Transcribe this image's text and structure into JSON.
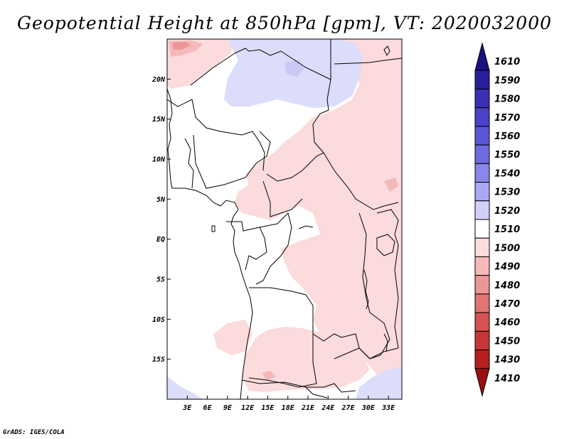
{
  "title": "Geopotential Height at 850hPa [gpm], VT: 2020032000",
  "credit": "GrADS: IGES/COLA",
  "map": {
    "lat_labels": [
      "20N",
      "15N",
      "10N",
      "5N",
      "EQ",
      "5S",
      "10S",
      "15S"
    ],
    "lon_labels": [
      "3E",
      "6E",
      "9E",
      "12E",
      "15E",
      "18E",
      "21E",
      "24E",
      "27E",
      "30E",
      "33E"
    ],
    "lat_values": [
      20,
      15,
      10,
      5,
      0,
      -5,
      -10,
      -15
    ],
    "lon_values": [
      3,
      6,
      9,
      12,
      15,
      18,
      21,
      24,
      27,
      30,
      33
    ],
    "lon_range": [
      0,
      35
    ],
    "lat_range": [
      -20,
      25
    ]
  },
  "colorbar": {
    "levels": [
      "1610",
      "1590",
      "1580",
      "1570",
      "1560",
      "1550",
      "1540",
      "1530",
      "1520",
      "1510",
      "1500",
      "1490",
      "1480",
      "1470",
      "1460",
      "1450",
      "1430",
      "1410"
    ],
    "colors": [
      "#1b1080",
      "#2a1d9a",
      "#3a2eb3",
      "#4a42c8",
      "#5b56d6",
      "#6f6be0",
      "#8a87ea",
      "#aaa8f2",
      "#d2d1fa",
      "#ffffff",
      "#fbdbdb",
      "#f5b9b9",
      "#ec9797",
      "#e17474",
      "#d55252",
      "#c73636",
      "#b51f1f",
      "#9c0f0f"
    ]
  }
}
